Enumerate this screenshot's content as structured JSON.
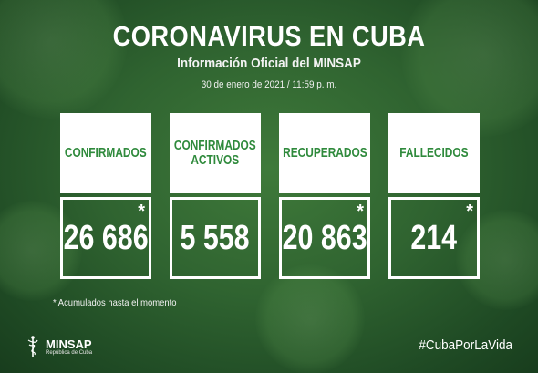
{
  "header": {
    "title": "CORONAVIRUS EN CUBA",
    "subtitle": "Información Oficial del MINSAP",
    "date": "30 de enero de 2021 / 11:59 p. m."
  },
  "cards": [
    {
      "label": "CONFIRMADOS",
      "value": "26 686",
      "asterisk": "*"
    },
    {
      "label": "CONFIRMADOS\nACTIVOS",
      "value": "5 558",
      "asterisk": ""
    },
    {
      "label": "RECUPERADOS",
      "value": "20 863",
      "asterisk": "*"
    },
    {
      "label": "FALLECIDOS",
      "value": "214",
      "asterisk": "*"
    }
  ],
  "footnote": "* Acumulados hasta el momento",
  "logo": {
    "name": "MINSAP",
    "sub": "República de Cuba"
  },
  "hashtag": "#CubaPorLaVida",
  "colors": {
    "label_green": "#2f8a3c",
    "background": "#2f6330"
  }
}
